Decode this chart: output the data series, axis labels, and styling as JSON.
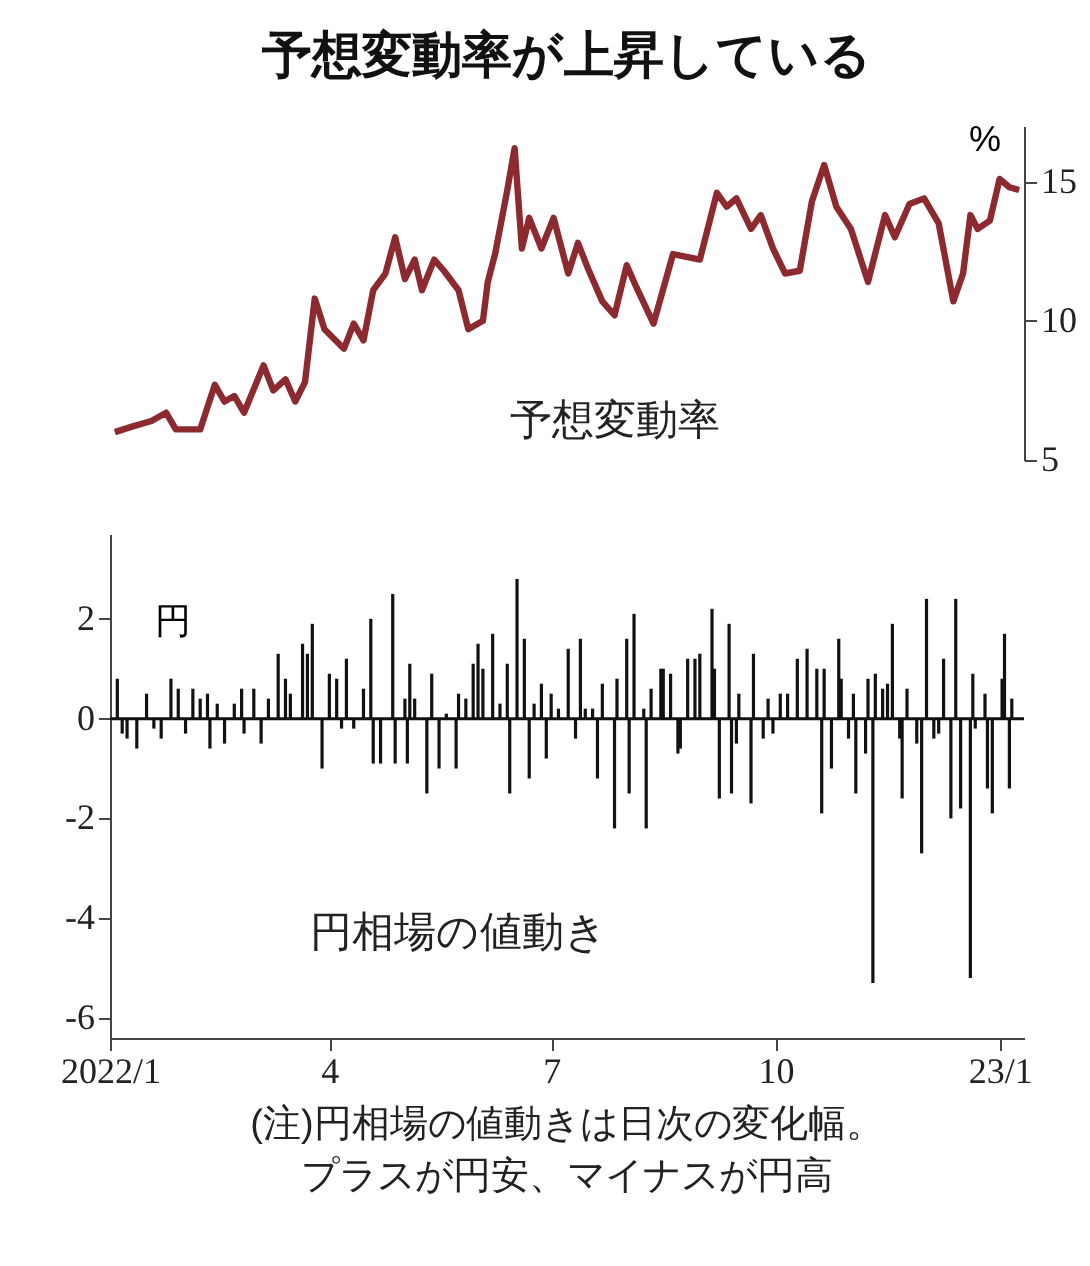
{
  "chart_data": [
    {
      "type": "line",
      "title": "予想変動率が上昇している",
      "ylabel": "%",
      "tick_labels": "y",
      "xlim": [
        "2022-01-01",
        "2023-01-11"
      ],
      "ylim": [
        5,
        17
      ],
      "yticks": [
        5,
        10,
        15
      ],
      "series": [
        {
          "name": "予想変動率",
          "color": "#8c2a30",
          "x": [
            "2022-01-03",
            "2022-01-10",
            "2022-01-18",
            "2022-01-24",
            "2022-01-28",
            "2022-02-07",
            "2022-02-13",
            "2022-02-17",
            "2022-02-21",
            "2022-02-25",
            "2022-03-05",
            "2022-03-09",
            "2022-03-14",
            "2022-03-18",
            "2022-03-22",
            "2022-03-26",
            "2022-03-30",
            "2022-04-07",
            "2022-04-11",
            "2022-04-15",
            "2022-04-19",
            "2022-04-24",
            "2022-04-28",
            "2022-05-02",
            "2022-05-06",
            "2022-05-09",
            "2022-05-14",
            "2022-05-18",
            "2022-05-24",
            "2022-05-28",
            "2022-06-03",
            "2022-06-05",
            "2022-06-08",
            "2022-06-13",
            "2022-06-16",
            "2022-06-19",
            "2022-06-22",
            "2022-06-27",
            "2022-07-02",
            "2022-07-08",
            "2022-07-12",
            "2022-07-16",
            "2022-07-22",
            "2022-07-27",
            "2022-08-01",
            "2022-08-05",
            "2022-08-12",
            "2022-08-20",
            "2022-08-31",
            "2022-09-07",
            "2022-09-11",
            "2022-09-15",
            "2022-09-21",
            "2022-09-25",
            "2022-09-30",
            "2022-10-05",
            "2022-10-11",
            "2022-10-16",
            "2022-10-21",
            "2022-10-26",
            "2022-11-01",
            "2022-11-08",
            "2022-11-15",
            "2022-11-19",
            "2022-11-25",
            "2022-12-01",
            "2022-12-07",
            "2022-12-13",
            "2022-12-17",
            "2022-12-20",
            "2022-12-23",
            "2022-12-28",
            "2023-01-01",
            "2023-01-05",
            "2023-01-09"
          ],
          "values": [
            6.0,
            6.2,
            6.4,
            6.7,
            6.1,
            6.1,
            7.7,
            7.1,
            7.3,
            6.7,
            8.4,
            7.5,
            7.9,
            7.1,
            7.8,
            10.8,
            9.7,
            9.0,
            9.9,
            9.3,
            11.1,
            11.7,
            13.0,
            11.5,
            12.2,
            11.1,
            12.2,
            11.8,
            11.1,
            9.7,
            10.0,
            11.4,
            12.4,
            14.7,
            16.2,
            12.6,
            13.7,
            12.6,
            13.7,
            11.7,
            12.8,
            11.9,
            10.7,
            10.2,
            12.0,
            11.2,
            9.9,
            12.4,
            12.2,
            14.6,
            14.1,
            14.4,
            13.3,
            13.8,
            12.6,
            11.7,
            11.8,
            14.3,
            15.6,
            14.1,
            13.3,
            11.4,
            13.8,
            13.0,
            14.2,
            14.4,
            13.5,
            10.7,
            11.7,
            13.8,
            13.3,
            13.6,
            15.1,
            14.8,
            14.7
          ]
        }
      ]
    },
    {
      "type": "bar",
      "ylabel": "円",
      "xlim": [
        "2022-01-01",
        "2023-01-11"
      ],
      "ylim": [
        -6.4,
        3.7
      ],
      "yticks": [
        -6,
        -4,
        -2,
        0,
        2
      ],
      "xticks": [
        {
          "value": "2022-01-01",
          "label": "2022/1"
        },
        {
          "value": "2022-04-01",
          "label": "4"
        },
        {
          "value": "2022-07-01",
          "label": "7"
        },
        {
          "value": "2022-10-01",
          "label": "10"
        },
        {
          "value": "2023-01-01",
          "label": "23/1"
        }
      ],
      "ref_lines": [
        {
          "axis": "y",
          "value": 0,
          "color": "#111111"
        }
      ],
      "annotations": [
        "(注)円相場の値動きは日次の変化幅。",
        "プラスが円安、マイナスが円高"
      ],
      "series": [
        {
          "name": "円相場の値動き",
          "color": "#111111",
          "x": [
            "2022-01-04",
            "2022-01-06",
            "2022-01-08",
            "2022-01-12",
            "2022-01-16",
            "2022-01-19",
            "2022-01-22",
            "2022-01-26",
            "2022-01-29",
            "2022-02-01",
            "2022-02-04",
            "2022-02-07",
            "2022-02-10",
            "2022-02-11",
            "2022-02-14",
            "2022-02-17",
            "2022-02-21",
            "2022-02-24",
            "2022-02-25",
            "2022-03-01",
            "2022-03-04",
            "2022-03-07",
            "2022-03-11",
            "2022-03-14",
            "2022-03-16",
            "2022-03-21",
            "2022-03-23",
            "2022-03-25",
            "2022-03-29",
            "2022-04-01",
            "2022-04-04",
            "2022-04-06",
            "2022-04-08",
            "2022-04-11",
            "2022-04-15",
            "2022-04-18",
            "2022-04-19",
            "2022-04-22",
            "2022-04-27",
            "2022-04-28",
            "2022-05-02",
            "2022-05-03",
            "2022-05-04",
            "2022-05-06",
            "2022-05-11",
            "2022-05-13",
            "2022-05-16",
            "2022-05-19",
            "2022-05-23",
            "2022-05-24",
            "2022-05-27",
            "2022-05-30",
            "2022-06-01",
            "2022-06-03",
            "2022-06-07",
            "2022-06-10",
            "2022-06-13",
            "2022-06-14",
            "2022-06-17",
            "2022-06-20",
            "2022-06-22",
            "2022-06-24",
            "2022-06-27",
            "2022-06-29",
            "2022-07-01",
            "2022-07-04",
            "2022-07-08",
            "2022-07-11",
            "2022-07-13",
            "2022-07-15",
            "2022-07-18",
            "2022-07-20",
            "2022-07-22",
            "2022-07-27",
            "2022-07-28",
            "2022-08-01",
            "2022-08-02",
            "2022-08-04",
            "2022-08-08",
            "2022-08-09",
            "2022-08-11",
            "2022-08-15",
            "2022-08-16",
            "2022-08-19",
            "2022-08-22",
            "2022-08-23",
            "2022-08-26",
            "2022-08-29",
            "2022-08-31",
            "2022-09-05",
            "2022-09-06",
            "2022-09-08",
            "2022-09-12",
            "2022-09-13",
            "2022-09-15",
            "2022-09-16",
            "2022-09-21",
            "2022-09-22",
            "2022-09-26",
            "2022-09-28",
            "2022-09-30",
            "2022-10-03",
            "2022-10-06",
            "2022-10-10",
            "2022-10-14",
            "2022-10-18",
            "2022-10-20",
            "2022-10-21",
            "2022-10-24",
            "2022-10-27",
            "2022-10-28",
            "2022-10-31",
            "2022-11-02",
            "2022-11-03",
            "2022-11-07",
            "2022-11-08",
            "2022-11-10",
            "2022-11-11",
            "2022-11-14",
            "2022-11-16",
            "2022-11-18",
            "2022-11-21",
            "2022-11-22",
            "2022-11-24",
            "2022-11-28",
            "2022-11-30",
            "2022-12-02",
            "2022-12-05",
            "2022-12-07",
            "2022-12-09",
            "2022-12-12",
            "2022-12-14",
            "2022-12-16",
            "2022-12-20",
            "2022-12-21",
            "2022-12-22",
            "2022-12-26",
            "2022-12-27",
            "2022-12-29",
            "2023-01-02",
            "2023-01-03",
            "2023-01-05",
            "2023-01-06"
          ],
          "values": [
            0.8,
            -0.3,
            -0.4,
            -0.6,
            0.5,
            -0.2,
            -0.4,
            0.8,
            0.6,
            -0.3,
            0.6,
            0.4,
            0.5,
            -0.6,
            0.3,
            -0.5,
            0.3,
            0.6,
            -0.3,
            0.6,
            -0.5,
            0.4,
            1.3,
            0.8,
            0.5,
            1.5,
            1.3,
            1.9,
            -1.0,
            0.9,
            0.8,
            -0.2,
            1.2,
            -0.2,
            0.6,
            2.0,
            -0.9,
            -0.9,
            2.5,
            -0.9,
            0.4,
            -0.9,
            1.1,
            0.4,
            -1.5,
            0.9,
            -1.0,
            0.1,
            -1.0,
            0.5,
            0.4,
            1.1,
            1.5,
            1.0,
            1.7,
            0.3,
            1.1,
            -1.5,
            2.8,
            1.6,
            -1.2,
            0.3,
            0.7,
            -0.8,
            0.5,
            0.2,
            1.4,
            -0.4,
            1.6,
            0.2,
            0.2,
            -1.2,
            0.7,
            -2.2,
            0.8,
            1.6,
            -1.5,
            2.1,
            0.2,
            -2.2,
            0.6,
            1.0,
            1.0,
            0.9,
            -0.7,
            -0.6,
            1.2,
            1.2,
            1.3,
            2.2,
            1.0,
            -1.6,
            1.9,
            -1.5,
            -0.5,
            0.5,
            -1.7,
            1.3,
            -0.4,
            0.4,
            -0.3,
            0.5,
            0.5,
            1.2,
            1.4,
            1.0,
            -1.9,
            1.0,
            -1.0,
            1.6,
            0.8,
            -0.4,
            0.5,
            -1.5,
            -0.7,
            0.8,
            -5.3,
            0.9,
            0.6,
            0.7,
            1.9,
            -0.4,
            -1.6,
            0.6,
            -0.5,
            -2.7,
            2.4,
            -0.4,
            -0.3,
            1.2,
            -2.0,
            2.4,
            -1.8,
            -5.2,
            0.9,
            -0.2,
            0.5,
            -1.4,
            -1.9,
            0.8,
            1.7,
            -1.4,
            0.4
          ]
        }
      ]
    }
  ]
}
